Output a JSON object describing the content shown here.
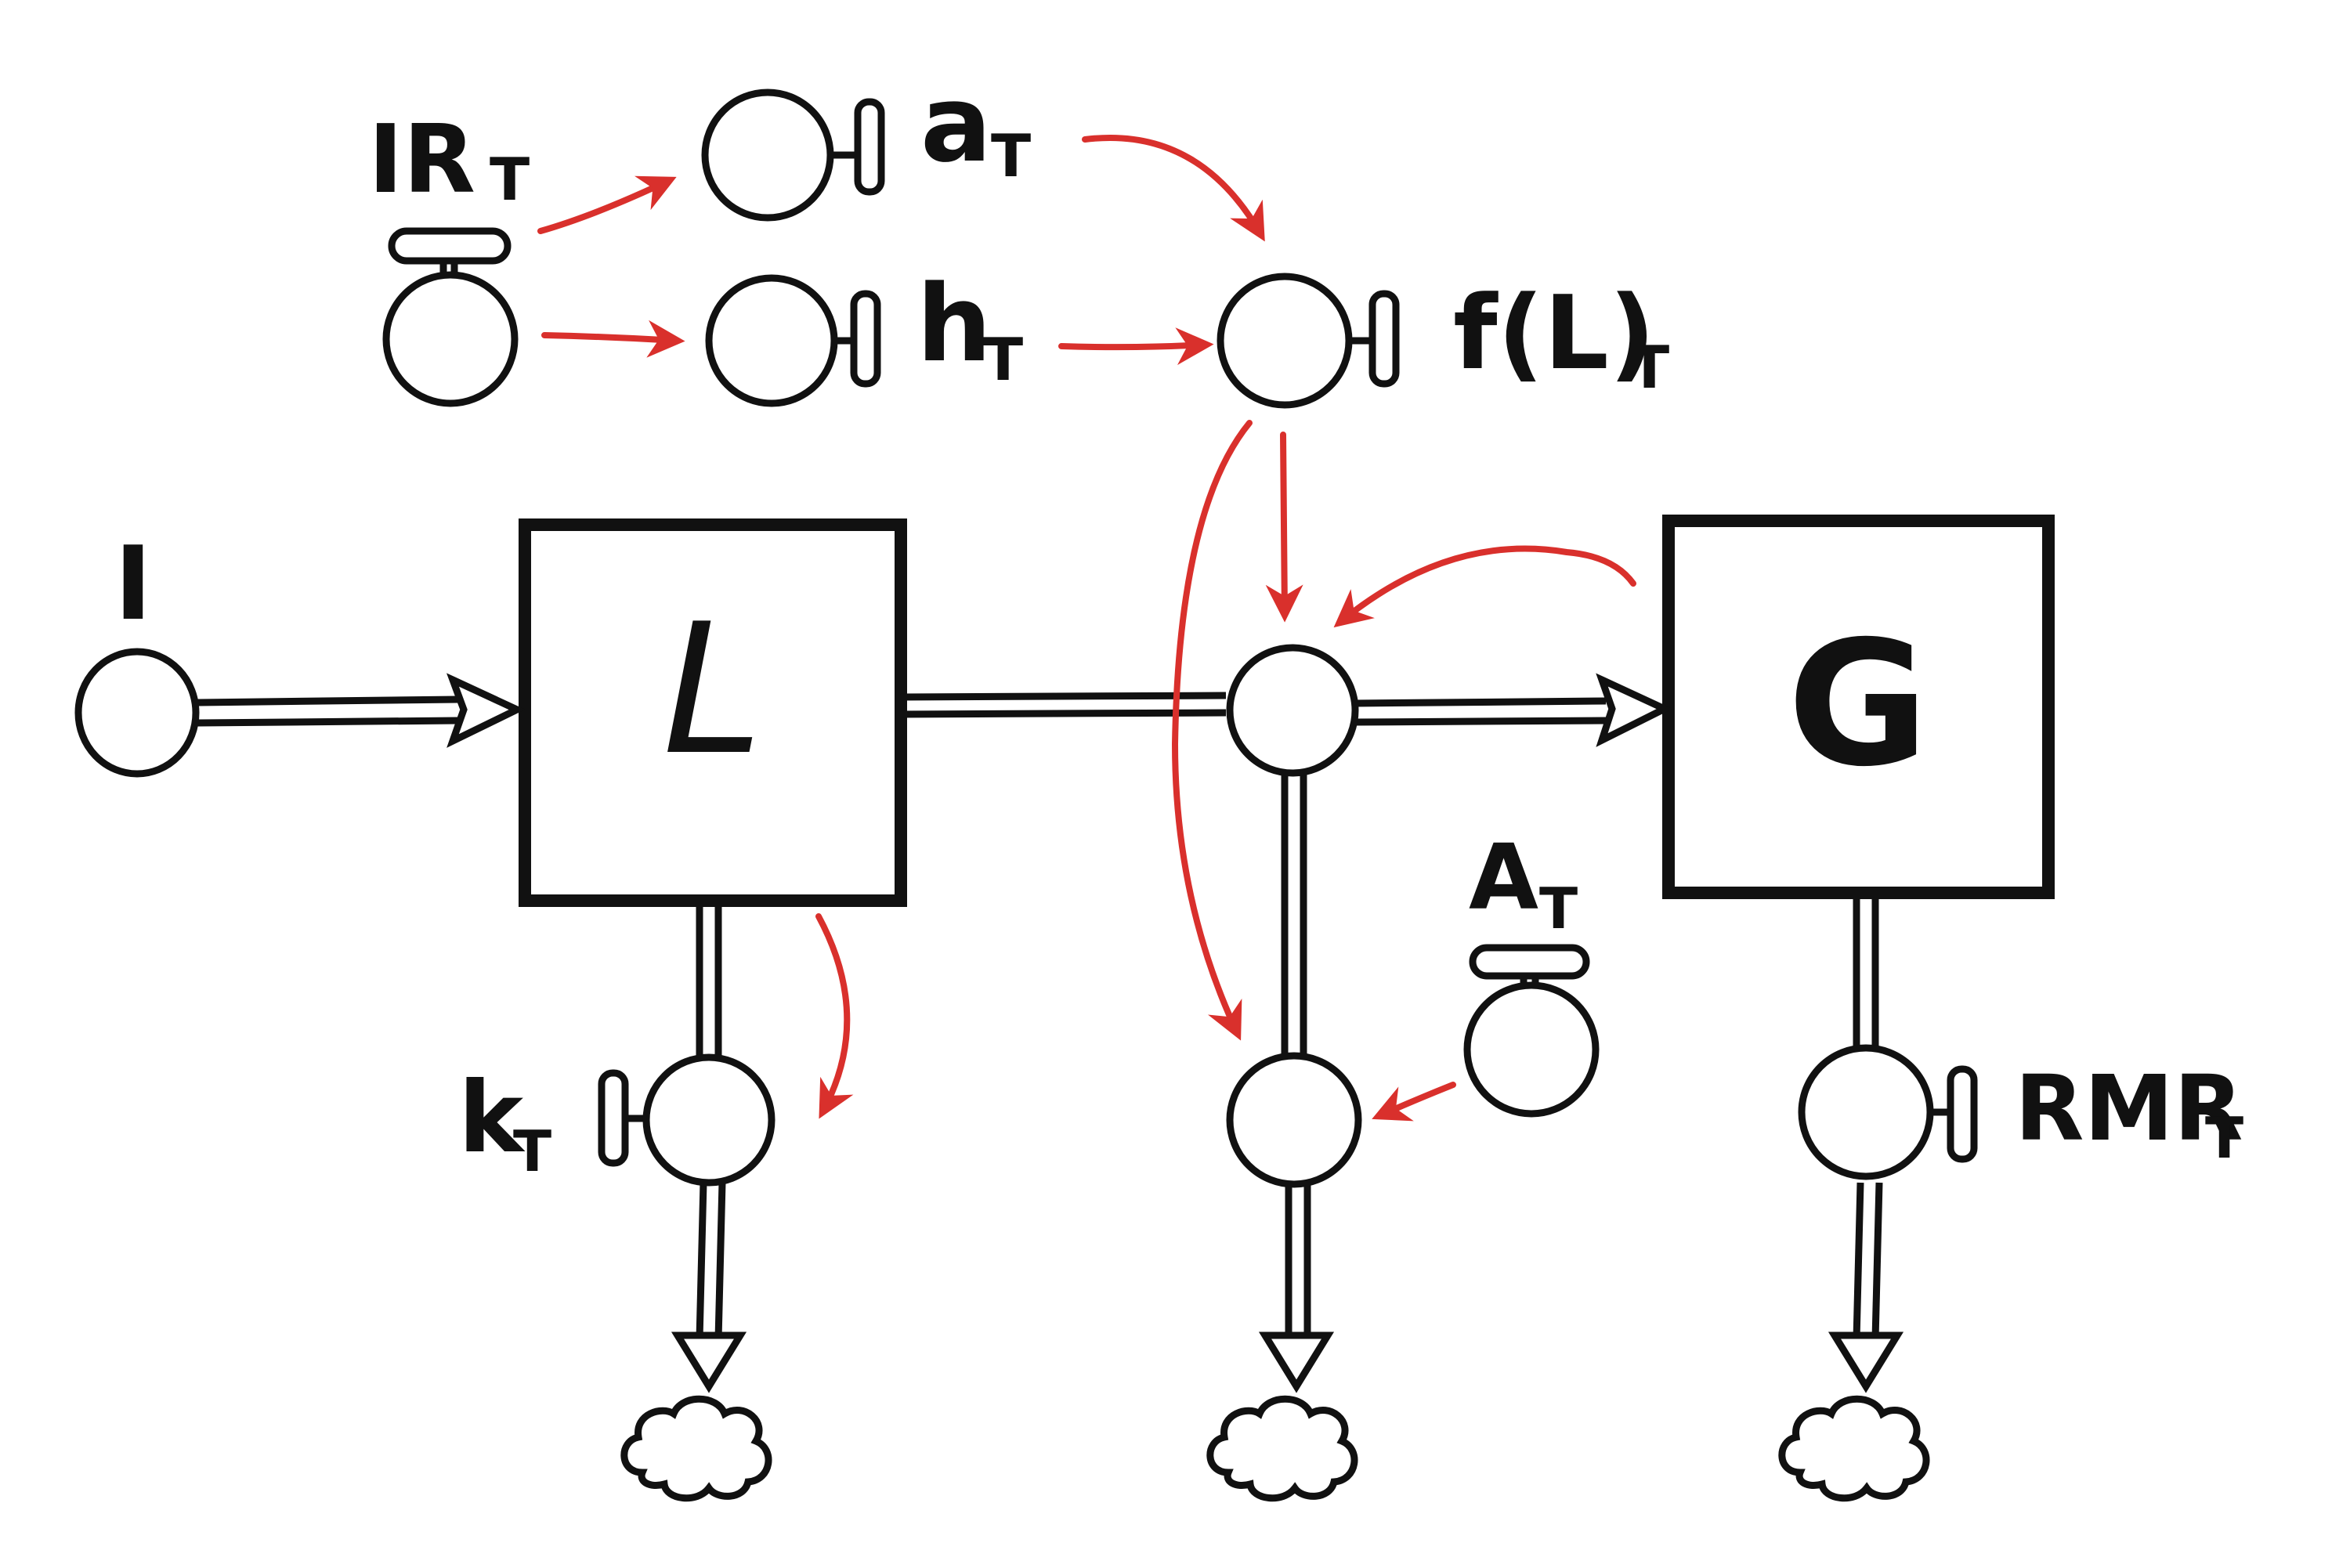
{
  "colors": {
    "ink": "#111111",
    "accent": "#d9302c",
    "paper": "#ffffff"
  },
  "stocks": {
    "L": {
      "label": "L"
    },
    "G": {
      "label": "G"
    }
  },
  "labels": {
    "I": "I",
    "IR": {
      "main": "IR",
      "sub": "T"
    },
    "a": {
      "main": "a",
      "sub": "T"
    },
    "h": {
      "main": "h",
      "sub": "T"
    },
    "fL": {
      "main": "f(L)",
      "sub": "T"
    },
    "A": {
      "main": "A",
      "sub": "T"
    },
    "k": {
      "main": "k",
      "sub": "T"
    },
    "RMR": {
      "main": "RMR",
      "sub": "T"
    }
  },
  "icons": {
    "cloud": "cloud-sink-icon",
    "valve": "valve-icon",
    "converter": "converter-icon"
  }
}
